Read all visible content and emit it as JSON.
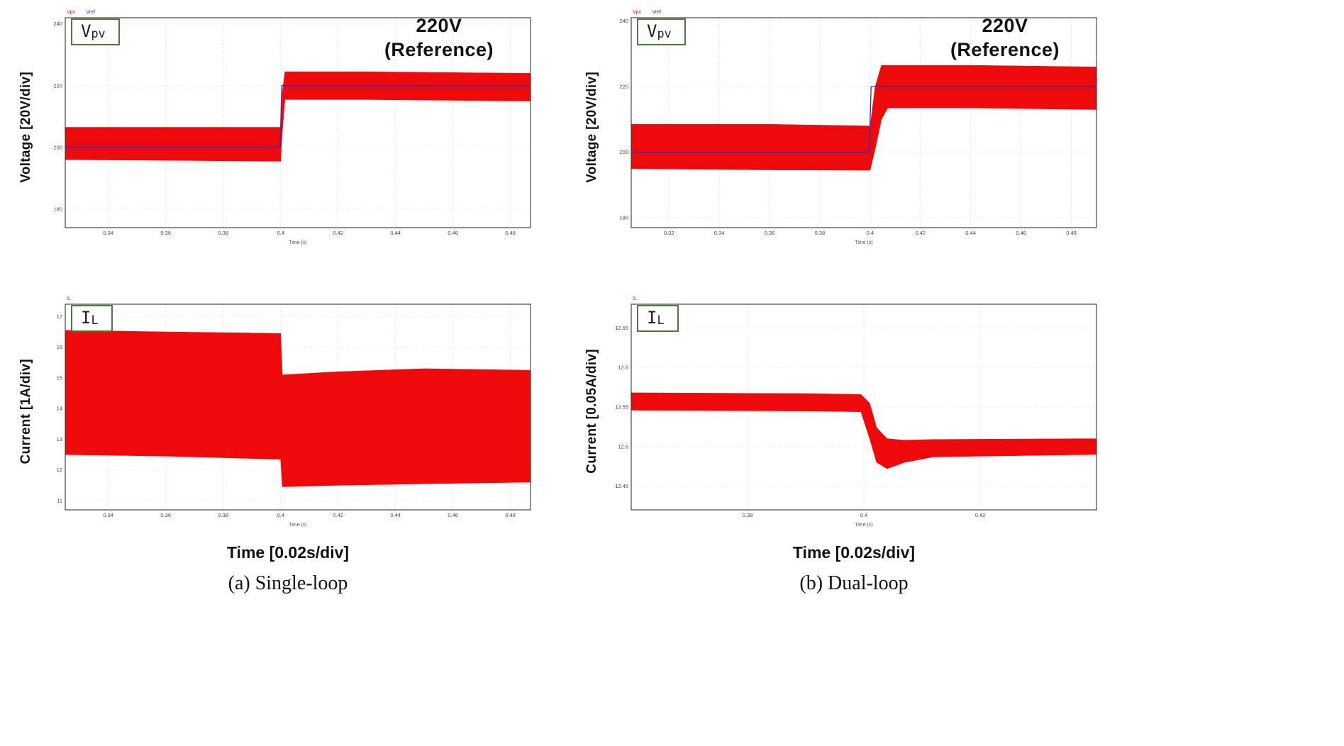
{
  "figure": {
    "columns": [
      {
        "caption": "(a) Single-loop",
        "time_label": "Time [0.02s/div]"
      },
      {
        "caption": "(b) Dual-loop",
        "time_label": "Time [0.02s/div]"
      }
    ]
  },
  "panels": [
    {
      "ylabel": "Voltage [20V/div]",
      "signal": {
        "main": "V",
        "sub": "pv"
      },
      "annotation_line1": "220V",
      "annotation_line2": "(Reference)"
    },
    {
      "ylabel": "Current [1A/div]",
      "signal": {
        "main": "I",
        "sub": "L"
      }
    },
    {
      "ylabel": "Voltage [20V/div]",
      "signal": {
        "main": "V",
        "sub": "pv"
      },
      "annotation_line1": "220V",
      "annotation_line2": "(Reference)"
    },
    {
      "ylabel": "Current [0.05A/div]",
      "signal": {
        "main": "I",
        "sub": "L"
      }
    }
  ],
  "colors": {
    "trace_red": "#ee0a0a",
    "reference_blue": "#2c2cc8",
    "box_border_green": "#4d7a3c",
    "grid": "#c9c9c9",
    "frame": "#333333"
  },
  "chart_data": [
    {
      "type": "area",
      "title": "Vpv step response, single-loop control",
      "axis_note": "Time (s)",
      "legend": [
        {
          "label": "Vpv",
          "color": "#ee0a0a"
        },
        {
          "label": "Vref",
          "color": "#2c2cc8"
        }
      ],
      "xlim": [
        0.325,
        0.487
      ],
      "ylim": [
        174,
        242
      ],
      "xticks": [
        0.34,
        0.36,
        0.38,
        0.4,
        0.42,
        0.44,
        0.46,
        0.48
      ],
      "xtick_labels": [
        "0.34",
        "0.36",
        "0.38",
        "0.4",
        "0.42",
        "0.44",
        "0.46",
        "0.48"
      ],
      "yticks": [
        180,
        200,
        220,
        240
      ],
      "ytick_labels": [
        "180",
        "200",
        "220",
        "240"
      ],
      "band": {
        "color": "#ee0a0a",
        "points": [
          [
            0.325,
            196.0,
            206.5
          ],
          [
            0.36,
            195.8,
            206.5
          ],
          [
            0.399,
            195.5,
            206.5
          ],
          [
            0.4,
            195.5,
            206.5
          ],
          [
            0.4006,
            205.0,
            218.0
          ],
          [
            0.4015,
            215.5,
            224.5
          ],
          [
            0.43,
            215.5,
            224.5
          ],
          [
            0.487,
            215.0,
            224.0
          ]
        ]
      },
      "ref_line": {
        "color": "#2c2cc8",
        "points": [
          [
            0.325,
            200
          ],
          [
            0.3998,
            200
          ],
          [
            0.4004,
            220
          ],
          [
            0.487,
            220
          ]
        ]
      }
    },
    {
      "type": "area",
      "title": "IL step response, single-loop control",
      "axis_note": "Time (s)",
      "legend": [
        {
          "label": "IL",
          "color": "#ee0a0a"
        }
      ],
      "xlim": [
        0.325,
        0.487
      ],
      "ylim": [
        10.7,
        17.4
      ],
      "xticks": [
        0.34,
        0.36,
        0.38,
        0.4,
        0.42,
        0.44,
        0.46,
        0.48
      ],
      "xtick_labels": [
        "0.34",
        "0.36",
        "0.38",
        "0.4",
        "0.42",
        "0.44",
        "0.46",
        "0.48"
      ],
      "yticks": [
        11,
        12,
        13,
        14,
        15,
        16,
        17
      ],
      "ytick_labels": [
        "11",
        "12",
        "13",
        "14",
        "15",
        "16",
        "17"
      ],
      "band": {
        "color": "#ee0a0a",
        "points": [
          [
            0.325,
            12.5,
            16.55
          ],
          [
            0.36,
            12.45,
            16.5
          ],
          [
            0.399,
            12.35,
            16.45
          ],
          [
            0.4,
            12.35,
            16.45
          ],
          [
            0.4006,
            11.45,
            15.1
          ],
          [
            0.42,
            11.5,
            15.2
          ],
          [
            0.45,
            11.55,
            15.3
          ],
          [
            0.487,
            11.6,
            15.25
          ]
        ]
      }
    },
    {
      "type": "area",
      "title": "Vpv step response, dual-loop control",
      "axis_note": "Time (s)",
      "legend": [
        {
          "label": "Vpv",
          "color": "#ee0a0a"
        },
        {
          "label": "Vref",
          "color": "#2c2cc8"
        }
      ],
      "xlim": [
        0.305,
        0.49
      ],
      "ylim": [
        177,
        241
      ],
      "xticks": [
        0.32,
        0.34,
        0.36,
        0.38,
        0.4,
        0.42,
        0.44,
        0.46,
        0.48
      ],
      "xtick_labels": [
        "0.32",
        "0.34",
        "0.36",
        "0.38",
        "0.4",
        "0.42",
        "0.44",
        "0.46",
        "0.48"
      ],
      "yticks": [
        180,
        200,
        220,
        240
      ],
      "ytick_labels": [
        "180",
        "200",
        "220",
        "240"
      ],
      "band": {
        "color": "#ee0a0a",
        "points": [
          [
            0.305,
            195.0,
            208.5
          ],
          [
            0.36,
            194.6,
            208.5
          ],
          [
            0.399,
            194.5,
            208.0
          ],
          [
            0.4,
            194.5,
            208.0
          ],
          [
            0.402,
            201.0,
            220.0
          ],
          [
            0.4045,
            210.0,
            226.5
          ],
          [
            0.407,
            213.5,
            226.5
          ],
          [
            0.44,
            213.5,
            226.5
          ],
          [
            0.49,
            213.0,
            226.0
          ]
        ]
      },
      "ref_line": {
        "color": "#2c2cc8",
        "points": [
          [
            0.305,
            200
          ],
          [
            0.3996,
            200
          ],
          [
            0.4004,
            220
          ],
          [
            0.49,
            220
          ]
        ]
      }
    },
    {
      "type": "area",
      "title": "IL step response, dual-loop control",
      "axis_note": "Time (s)",
      "legend": [
        {
          "label": "IL",
          "color": "#ee0a0a"
        }
      ],
      "xlim": [
        0.36,
        0.44
      ],
      "ylim": [
        12.42,
        12.68
      ],
      "xticks": [
        0.38,
        0.4,
        0.42
      ],
      "xtick_labels": [
        "0.38",
        "0.4",
        "0.42"
      ],
      "yticks": [
        12.45,
        12.5,
        12.55,
        12.6,
        12.65
      ],
      "ytick_labels": [
        "12.45",
        "12.5",
        "12.55",
        "12.6",
        "12.65"
      ],
      "band": {
        "color": "#ee0a0a",
        "points": [
          [
            0.36,
            12.546,
            12.568
          ],
          [
            0.39,
            12.545,
            12.567
          ],
          [
            0.3995,
            12.544,
            12.566
          ],
          [
            0.401,
            12.51,
            12.555
          ],
          [
            0.4022,
            12.48,
            12.524
          ],
          [
            0.404,
            12.472,
            12.51
          ],
          [
            0.407,
            12.48,
            12.508
          ],
          [
            0.412,
            12.487,
            12.509
          ],
          [
            0.44,
            12.49,
            12.51
          ]
        ]
      }
    }
  ]
}
